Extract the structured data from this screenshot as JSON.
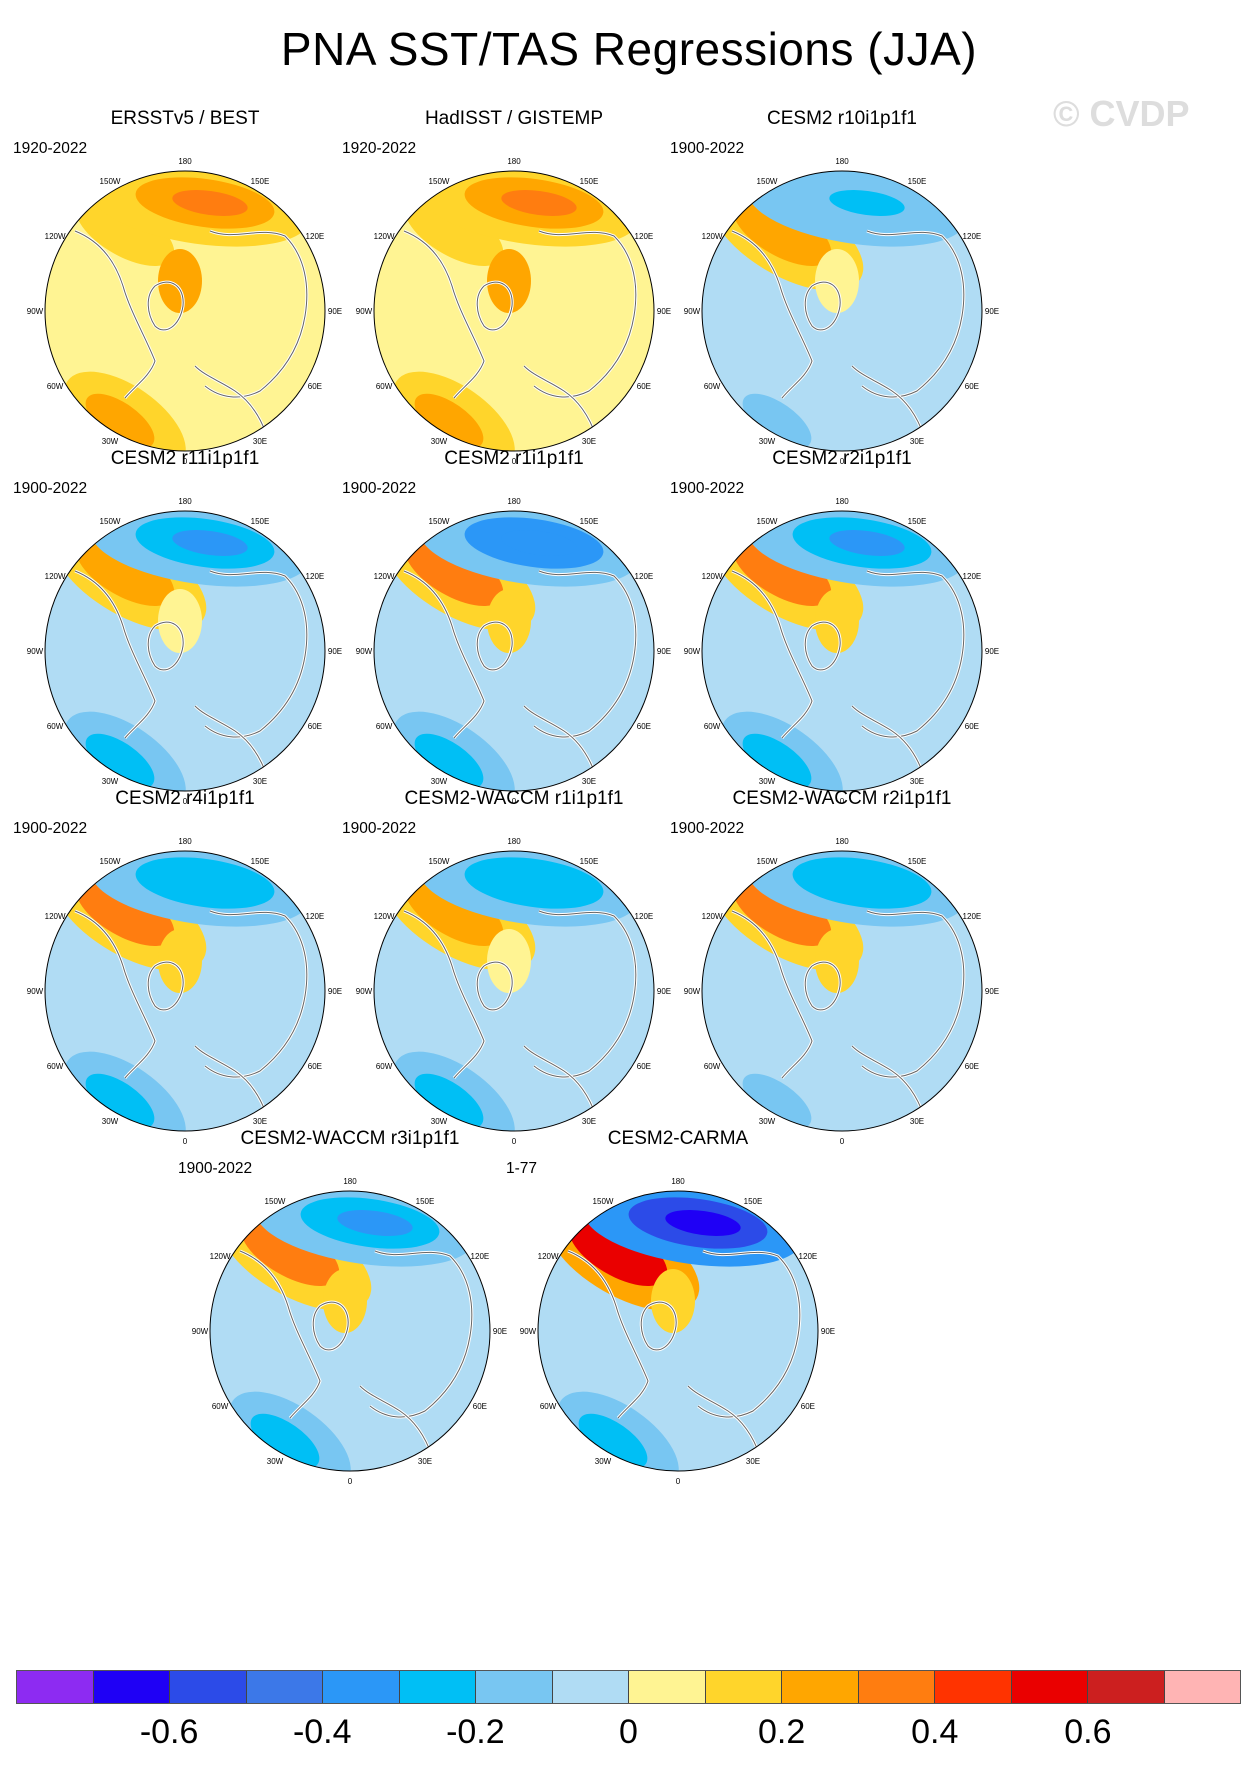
{
  "title": "PNA SST/TAS Regressions (JJA)",
  "watermark": "© CVDP",
  "longitude_labels": [
    "180",
    "150E",
    "120E",
    "90E",
    "60E",
    "30E",
    "0",
    "30W",
    "60W",
    "90W",
    "120W",
    "150W"
  ],
  "chart_data": [
    {
      "type": "heatmap",
      "title": "ERSSTv5 / BEST",
      "period": "1920-2022",
      "pattern": {
        "pacific_north": 0.35,
        "pacific_west": 0.1,
        "atlantic": 0.25,
        "eurasia": 0.05,
        "arctic": 0.2
      }
    },
    {
      "type": "heatmap",
      "title": "HadISST / GISTEMP",
      "period": "1920-2022",
      "pattern": {
        "pacific_north": 0.3,
        "pacific_west": 0.15,
        "atlantic": 0.25,
        "eurasia": 0.05,
        "arctic": 0.2
      }
    },
    {
      "type": "heatmap",
      "title": "CESM2 r10i1p1f1",
      "period": "1900-2022",
      "pattern": {
        "pacific_north": -0.25,
        "pacific_west": 0.25,
        "atlantic": -0.2,
        "eurasia": -0.05,
        "arctic": 0.05
      }
    },
    {
      "type": "heatmap",
      "title": "CESM2 r11i1p1f1",
      "period": "1900-2022",
      "pattern": {
        "pacific_north": -0.35,
        "pacific_west": 0.25,
        "atlantic": -0.3,
        "eurasia": -0.05,
        "arctic": 0.05
      }
    },
    {
      "type": "heatmap",
      "title": "CESM2 r1i1p1f1",
      "period": "1900-2022",
      "pattern": {
        "pacific_north": -0.4,
        "pacific_west": 0.35,
        "atlantic": -0.3,
        "eurasia": -0.05,
        "arctic": 0.1
      }
    },
    {
      "type": "heatmap",
      "title": "CESM2 r2i1p1f1",
      "period": "1900-2022",
      "pattern": {
        "pacific_north": -0.35,
        "pacific_west": 0.3,
        "atlantic": -0.25,
        "eurasia": -0.05,
        "arctic": 0.1
      }
    },
    {
      "type": "heatmap",
      "title": "CESM2 r4i1p1f1",
      "period": "1900-2022",
      "pattern": {
        "pacific_north": -0.3,
        "pacific_west": 0.3,
        "atlantic": -0.25,
        "eurasia": -0.05,
        "arctic": 0.1
      }
    },
    {
      "type": "heatmap",
      "title": "CESM2-WACCM r1i1p1f1",
      "period": "1900-2022",
      "pattern": {
        "pacific_north": -0.3,
        "pacific_west": 0.25,
        "atlantic": -0.25,
        "eurasia": -0.05,
        "arctic": 0.05
      }
    },
    {
      "type": "heatmap",
      "title": "CESM2-WACCM r2i1p1f1",
      "period": "1900-2022",
      "pattern": {
        "pacific_north": -0.3,
        "pacific_west": 0.3,
        "atlantic": -0.2,
        "eurasia": -0.05,
        "arctic": 0.1
      }
    },
    {
      "type": "heatmap",
      "title": "CESM2-WACCM r3i1p1f1",
      "period": "1900-2022",
      "pattern": {
        "pacific_north": -0.35,
        "pacific_west": 0.3,
        "atlantic": -0.25,
        "eurasia": -0.05,
        "arctic": 0.15
      }
    },
    {
      "type": "heatmap",
      "title": "CESM2-CARMA",
      "period": "1-77",
      "pattern": {
        "pacific_north": -0.65,
        "pacific_west": 0.55,
        "atlantic": -0.25,
        "eurasia": -0.05,
        "arctic": 0.15
      }
    }
  ],
  "colorbar": {
    "colors": [
      "#8d2bf2",
      "#1f00f5",
      "#2c4be8",
      "#3c78e8",
      "#2b97f7",
      "#00bff5",
      "#78c6f2",
      "#b0dcf4",
      "#fff493",
      "#ffd52b",
      "#ffa600",
      "#ff7d10",
      "#ff3300",
      "#ea0000",
      "#cc1f1f",
      "#ffb4b4"
    ],
    "labels": [
      "-0.6",
      "-0.4",
      "-0.2",
      "0",
      "0.2",
      "0.4",
      "0.6"
    ]
  }
}
